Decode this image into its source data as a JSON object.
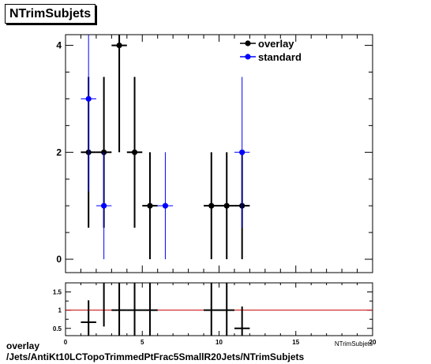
{
  "title": "NTrimSubjets",
  "caption_lines": [
    "overlay",
    "/Jets/AntiKt10LCTopoTrimmedPtFrac5SmallR20Jets/NTrimSubjets"
  ],
  "chart_data": [
    {
      "type": "scatter",
      "panel": "main",
      "xlim": [
        0,
        20
      ],
      "ylim": [
        -0.25,
        4.2
      ],
      "yticks": [
        0,
        2,
        4
      ],
      "legend_position": "top-right",
      "grid": false,
      "series": [
        {
          "name": "overlay",
          "color": "#000000",
          "points": [
            {
              "x": 1.5,
              "y": 2,
              "yerr": 1.41
            },
            {
              "x": 2.5,
              "y": 2,
              "yerr": 1.41
            },
            {
              "x": 3.5,
              "y": 4,
              "yerr": 2.0
            },
            {
              "x": 4.5,
              "y": 2,
              "yerr": 1.41
            },
            {
              "x": 5.5,
              "y": 1,
              "yerr": 1.0
            },
            {
              "x": 9.5,
              "y": 1,
              "yerr": 1.0
            },
            {
              "x": 10.5,
              "y": 1,
              "yerr": 1.0
            },
            {
              "x": 11.5,
              "y": 1,
              "yerr": 1.0
            }
          ]
        },
        {
          "name": "standard",
          "color": "#0000ff",
          "points": [
            {
              "x": 1.5,
              "y": 3,
              "yerr": 1.73
            },
            {
              "x": 2.5,
              "y": 1,
              "yerr": 1.0
            },
            {
              "x": 6.5,
              "y": 1,
              "yerr": 1.0
            },
            {
              "x": 11.5,
              "y": 2,
              "yerr": 1.41
            }
          ]
        }
      ]
    },
    {
      "type": "scatter",
      "panel": "ratio",
      "xlim": [
        0,
        20
      ],
      "ylim": [
        0.3,
        1.75
      ],
      "yticks": [
        0.5,
        1,
        1.5
      ],
      "xticks": [
        0,
        5,
        10,
        15,
        20
      ],
      "xlabel": "NTrimSubjets",
      "reference_line": {
        "y": 1,
        "color": "#cc0000"
      },
      "points": [
        {
          "x": 1.5,
          "y": 0.667,
          "ylo": 0.25,
          "yhi": 1.27
        },
        {
          "x": 2.5,
          "y": 2.0,
          "ylo": 0.55,
          "yhi": 4.0
        },
        {
          "x": 3.5,
          "y": 1.0,
          "ylo": 0.3,
          "yhi": 1.75
        },
        {
          "x": 4.5,
          "y": 1.0,
          "ylo": 0.3,
          "yhi": 1.75
        },
        {
          "x": 5.5,
          "y": 1.0,
          "ylo": 0.3,
          "yhi": 1.75
        },
        {
          "x": 9.5,
          "y": 1.0,
          "ylo": 0.3,
          "yhi": 1.75
        },
        {
          "x": 10.5,
          "y": 1.0,
          "ylo": 0.3,
          "yhi": 1.75
        },
        {
          "x": 11.5,
          "y": 0.5,
          "ylo": 0.08,
          "yhi": 1.1
        }
      ]
    }
  ]
}
